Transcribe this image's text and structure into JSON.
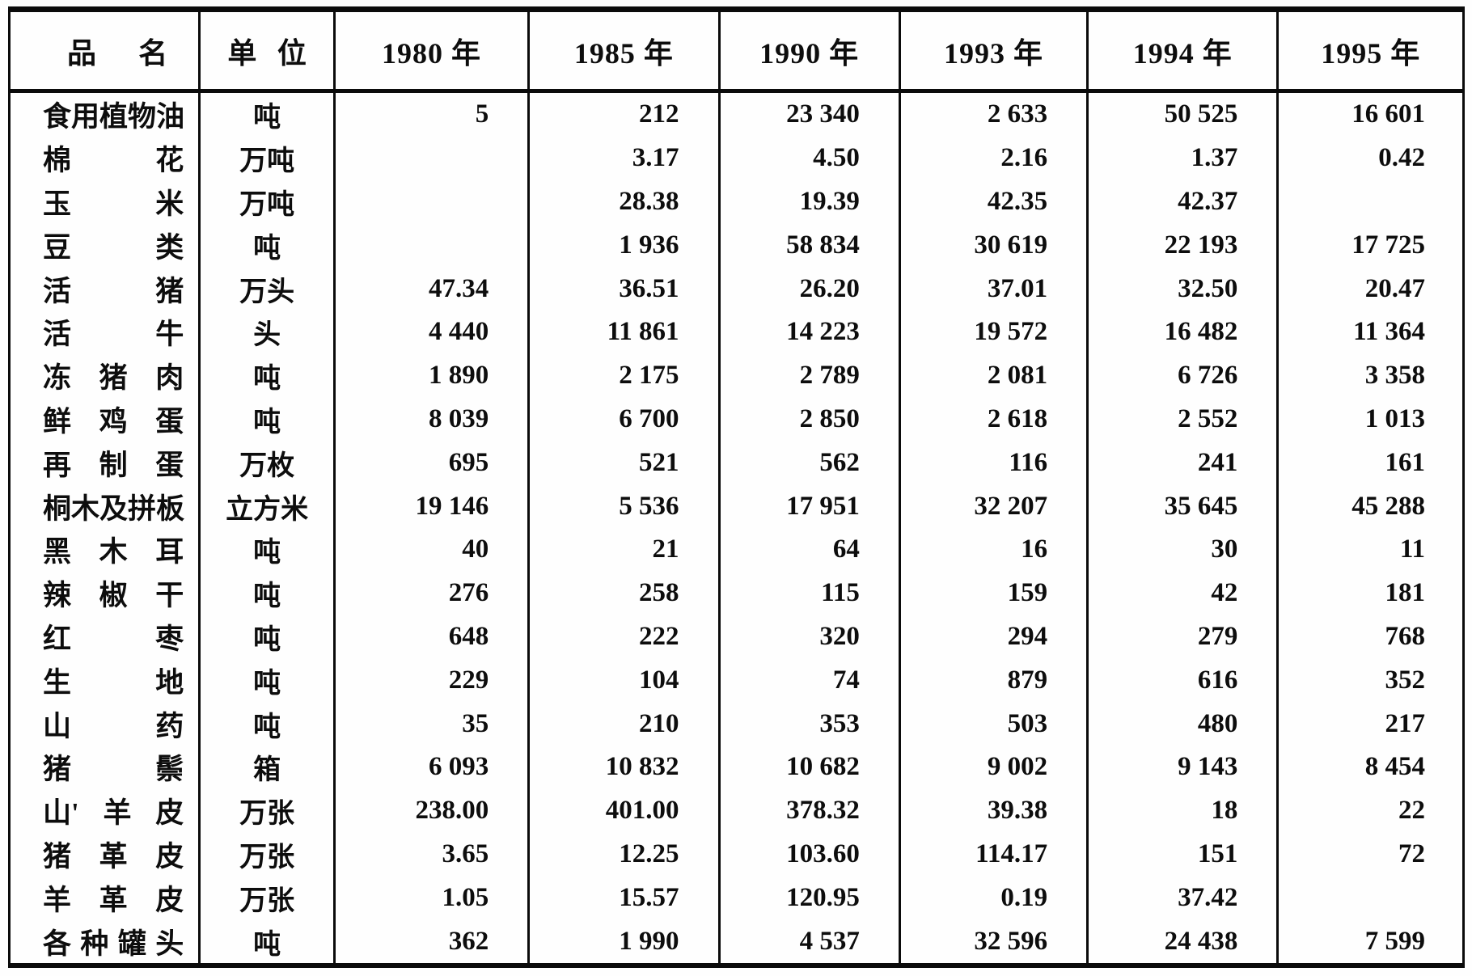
{
  "page": {
    "background": "#ffffff",
    "ink": "#0d0d0d",
    "description_visible": false
  },
  "table": {
    "columns": [
      "品名",
      "单位",
      "1980 年",
      "1985 年",
      "1990 年",
      "1993 年",
      "1994 年",
      "1995 年"
    ],
    "rows": [
      {
        "name": "食用植物油",
        "unit": "吨",
        "values": [
          "5",
          "212",
          "23 340",
          "2 633",
          "50 525",
          "16 601"
        ]
      },
      {
        "name": "棉花",
        "unit": "万吨",
        "values": [
          "",
          "3.17",
          "4.50",
          "2.16",
          "1.37",
          "0.42"
        ]
      },
      {
        "name": "玉米",
        "unit": "万吨",
        "values": [
          "",
          "28.38",
          "19.39",
          "42.35",
          "42.37",
          ""
        ]
      },
      {
        "name": "豆类",
        "unit": "吨",
        "values": [
          "",
          "1 936",
          "58 834",
          "30 619",
          "22 193",
          "17 725"
        ]
      },
      {
        "name": "活猪",
        "unit": "万头",
        "values": [
          "47.34",
          "36.51",
          "26.20",
          "37.01",
          "32.50",
          "20.47"
        ]
      },
      {
        "name": "活牛",
        "unit": "头",
        "values": [
          "4 440",
          "11 861",
          "14 223",
          "19 572",
          "16 482",
          "11 364"
        ]
      },
      {
        "name": "冻猪肉",
        "unit": "吨",
        "values": [
          "1 890",
          "2 175",
          "2 789",
          "2 081",
          "6 726",
          "3 358"
        ]
      },
      {
        "name": "鲜鸡蛋",
        "unit": "吨",
        "values": [
          "8 039",
          "6 700",
          "2 850",
          "2 618",
          "2 552",
          "1 013"
        ]
      },
      {
        "name": "再制蛋",
        "unit": "万枚",
        "values": [
          "695",
          "521",
          "562",
          "116",
          "241",
          "161"
        ]
      },
      {
        "name": "桐木及拼板",
        "unit": "立方米",
        "values": [
          "19 146",
          "5 536",
          "17 951",
          "32 207",
          "35 645",
          "45 288"
        ]
      },
      {
        "name": "黑木耳",
        "unit": "吨",
        "values": [
          "40",
          "21",
          "64",
          "16",
          "30",
          "11"
        ]
      },
      {
        "name": "辣椒干",
        "unit": "吨",
        "values": [
          "276",
          "258",
          "115",
          "159",
          "42",
          "181"
        ]
      },
      {
        "name": "红枣",
        "unit": "吨",
        "values": [
          "648",
          "222",
          "320",
          "294",
          "279",
          "768"
        ]
      },
      {
        "name": "生地",
        "unit": "吨",
        "values": [
          "229",
          "104",
          "74",
          "879",
          "616",
          "352"
        ]
      },
      {
        "name": "山药",
        "unit": "吨",
        "values": [
          "35",
          "210",
          "353",
          "503",
          "480",
          "217"
        ]
      },
      {
        "name": "猪鬃",
        "unit": "箱",
        "values": [
          "6 093",
          "10 832",
          "10 682",
          "9 002",
          "9 143",
          "8 454"
        ]
      },
      {
        "name": "山'羊皮",
        "unit": "万张",
        "values": [
          "238.00",
          "401.00",
          "378.32",
          "39.38",
          "18",
          "22"
        ]
      },
      {
        "name": "猪革皮",
        "unit": "万张",
        "values": [
          "3.65",
          "12.25",
          "103.60",
          "114.17",
          "151",
          "72"
        ]
      },
      {
        "name": "羊革皮",
        "unit": "万张",
        "values": [
          "1.05",
          "15.57",
          "120.95",
          "0.19",
          "37.42",
          ""
        ]
      },
      {
        "name": "各种罐头",
        "unit": "吨",
        "values": [
          "362",
          "1 990",
          "4 537",
          "32 596",
          "24 438",
          "7 599"
        ]
      }
    ]
  }
}
